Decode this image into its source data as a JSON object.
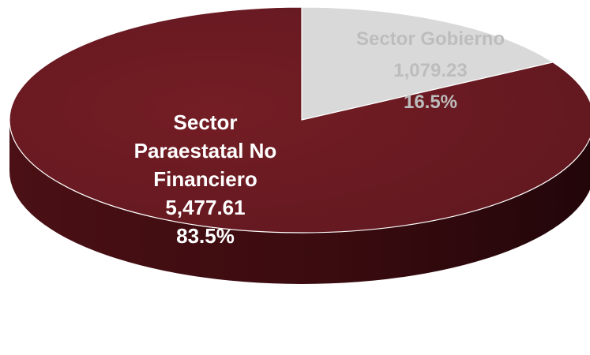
{
  "chart_data": {
    "type": "pie",
    "style": "3d",
    "title": "",
    "slices": [
      {
        "label": "Sector Paraestatal No Financiero",
        "label_lines": [
          "Sector",
          "Paraestatal No",
          "Financiero"
        ],
        "value": 5477.61,
        "value_text": "5,477.61",
        "percent": 83.5,
        "percent_text": "83.5%",
        "color": "#6b1a20",
        "side_color": "#3e0d11",
        "label_color": "#ffffff"
      },
      {
        "label": "Sector Gobierno",
        "label_lines": [
          "Sector Gobierno"
        ],
        "value": 1079.23,
        "value_text": "1,079.23",
        "percent": 16.5,
        "percent_text": "16.5%",
        "color": "#d9d9d9",
        "side_color": "#a6a6a6",
        "label_color": "#bdbdbd"
      }
    ]
  }
}
